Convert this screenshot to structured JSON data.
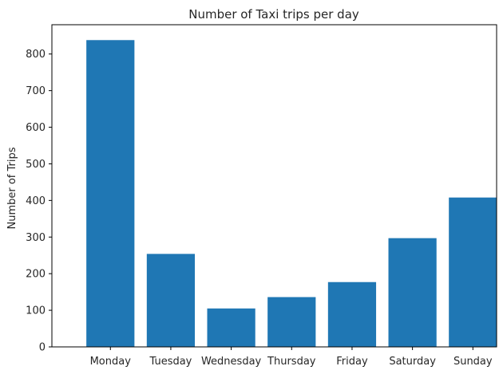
{
  "chart_data": {
    "type": "bar",
    "title": "Number of Taxi trips per day",
    "xlabel": "",
    "ylabel": "Number of Trips",
    "categories": [
      "Monday",
      "Tuesday",
      "Wednesday",
      "Thursday",
      "Friday",
      "Saturday",
      "Sunday"
    ],
    "values": [
      838,
      254,
      105,
      136,
      177,
      297,
      408
    ],
    "ylim": [
      0,
      880
    ],
    "yticks": [
      0,
      100,
      200,
      300,
      400,
      500,
      600,
      700,
      800
    ],
    "grid": false,
    "legend": "none",
    "bar_color": "#1f77b4"
  }
}
